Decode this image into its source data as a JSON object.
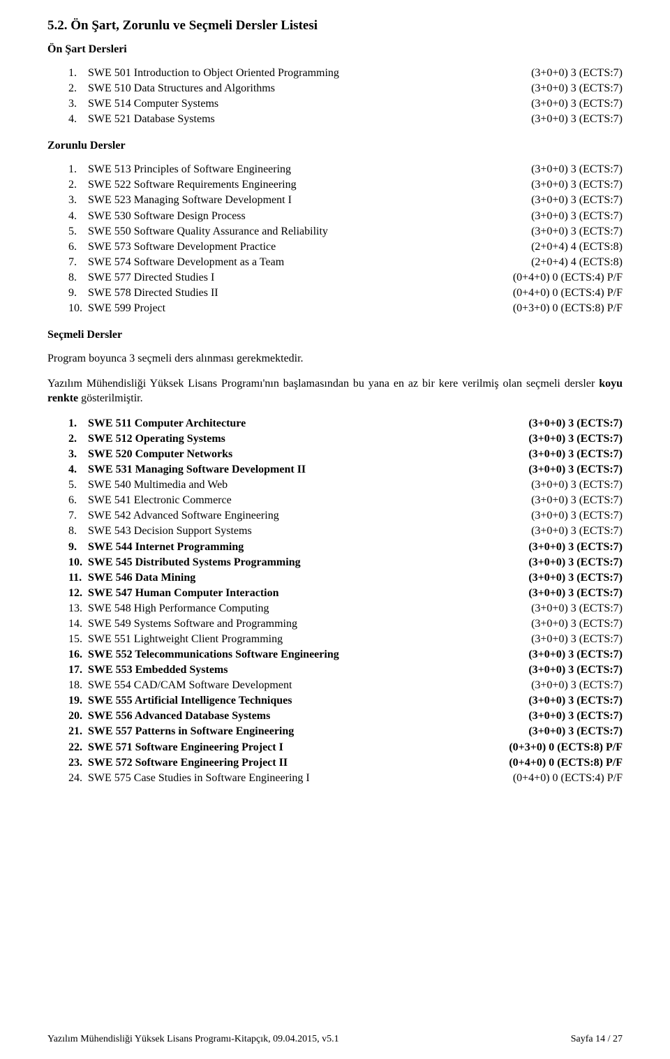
{
  "heading": "5.2. Ön Şart, Zorunlu ve Seçmeli Dersler Listesi",
  "section1": {
    "title": "Ön Şart Dersleri",
    "items": [
      {
        "n": "1.",
        "name": "SWE 501 Introduction to Object Oriented Programming",
        "cr": "(3+0+0) 3 (ECTS:7)",
        "b": false
      },
      {
        "n": "2.",
        "name": "SWE 510 Data Structures and Algorithms",
        "cr": "(3+0+0) 3 (ECTS:7)",
        "b": false
      },
      {
        "n": "3.",
        "name": "SWE 514 Computer Systems",
        "cr": "(3+0+0) 3 (ECTS:7)",
        "b": false
      },
      {
        "n": "4.",
        "name": "SWE 521 Database Systems",
        "cr": "(3+0+0) 3 (ECTS:7)",
        "b": false
      }
    ]
  },
  "section2": {
    "title": "Zorunlu Dersler",
    "items": [
      {
        "n": "1.",
        "name": "SWE 513 Principles of Software Engineering",
        "cr": "(3+0+0) 3 (ECTS:7)",
        "b": false
      },
      {
        "n": "2.",
        "name": "SWE 522 Software Requirements Engineering",
        "cr": "(3+0+0) 3 (ECTS:7)",
        "b": false
      },
      {
        "n": "3.",
        "name": "SWE 523 Managing Software Development I",
        "cr": "(3+0+0) 3 (ECTS:7)",
        "b": false
      },
      {
        "n": "4.",
        "name": "SWE 530 Software Design Process",
        "cr": "(3+0+0) 3 (ECTS:7)",
        "b": false
      },
      {
        "n": "5.",
        "name": "SWE 550 Software Quality Assurance and Reliability",
        "cr": "(3+0+0) 3 (ECTS:7)",
        "b": false
      },
      {
        "n": "6.",
        "name": "SWE 573 Software Development Practice",
        "cr": "(2+0+4) 4 (ECTS:8)",
        "b": false
      },
      {
        "n": "7.",
        "name": "SWE 574 Software Development as a Team",
        "cr": "(2+0+4) 4 (ECTS:8)",
        "b": false
      },
      {
        "n": "8.",
        "name": "SWE 577 Directed Studies I",
        "cr": "(0+4+0) 0 (ECTS:4) P/F",
        "b": false
      },
      {
        "n": "9.",
        "name": "SWE 578 Directed Studies II",
        "cr": "(0+4+0) 0 (ECTS:4) P/F",
        "b": false
      },
      {
        "n": "10.",
        "name": "SWE 599 Project",
        "cr": "(0+3+0) 0 (ECTS:8) P/F",
        "b": false
      }
    ]
  },
  "section3": {
    "title": "Seçmeli Dersler",
    "para1": "Program boyunca 3 seçmeli ders alınması gerekmektedir.",
    "para2_before": "Yazılım Mühendisliği Yüksek Lisans Programı'nın başlamasından bu yana en az bir kere verilmiş olan seçmeli dersler ",
    "para2_bold": "koyu renkte",
    "para2_after": " gösterilmiştir.",
    "items": [
      {
        "n": "1.",
        "name": "SWE 511 Computer Architecture",
        "cr": "(3+0+0) 3 (ECTS:7)",
        "b": true
      },
      {
        "n": "2.",
        "name": "SWE 512 Operating Systems",
        "cr": "(3+0+0) 3 (ECTS:7)",
        "b": true
      },
      {
        "n": "3.",
        "name": "SWE 520 Computer Networks",
        "cr": "(3+0+0) 3 (ECTS:7)",
        "b": true
      },
      {
        "n": "4.",
        "name": "SWE 531 Managing Software Development II",
        "cr": "(3+0+0) 3 (ECTS:7)",
        "b": true
      },
      {
        "n": "5.",
        "name": "SWE 540 Multimedia and Web",
        "cr": "(3+0+0) 3 (ECTS:7)",
        "b": false
      },
      {
        "n": "6.",
        "name": "SWE 541 Electronic Commerce",
        "cr": "(3+0+0) 3 (ECTS:7)",
        "b": false
      },
      {
        "n": "7.",
        "name": "SWE 542 Advanced Software Engineering",
        "cr": "(3+0+0) 3 (ECTS:7)",
        "b": false
      },
      {
        "n": "8.",
        "name": "SWE 543 Decision Support Systems",
        "cr": "(3+0+0) 3 (ECTS:7)",
        "b": false
      },
      {
        "n": "9.",
        "name": "SWE 544 Internet Programming",
        "cr": "(3+0+0) 3 (ECTS:7)",
        "b": true
      },
      {
        "n": "10.",
        "name": "SWE 545 Distributed Systems Programming",
        "cr": "(3+0+0) 3 (ECTS:7)",
        "b": true
      },
      {
        "n": "11.",
        "name": "SWE 546 Data Mining",
        "cr": "(3+0+0) 3 (ECTS:7)",
        "b": true
      },
      {
        "n": "12.",
        "name": "SWE 547 Human Computer Interaction",
        "cr": "(3+0+0) 3 (ECTS:7)",
        "b": true
      },
      {
        "n": "13.",
        "name": "SWE 548 High Performance Computing",
        "cr": "(3+0+0) 3 (ECTS:7)",
        "b": false
      },
      {
        "n": "14.",
        "name": "SWE 549 Systems Software and Programming",
        "cr": "(3+0+0) 3 (ECTS:7)",
        "b": false
      },
      {
        "n": "15.",
        "name": "SWE 551 Lightweight Client Programming",
        "cr": "(3+0+0) 3 (ECTS:7)",
        "b": false
      },
      {
        "n": "16.",
        "name": "SWE 552 Telecommunications Software Engineering",
        "cr": "(3+0+0) 3 (ECTS:7)",
        "b": true
      },
      {
        "n": "17.",
        "name": "SWE 553 Embedded Systems",
        "cr": "(3+0+0) 3 (ECTS:7)",
        "b": true
      },
      {
        "n": "18.",
        "name": "SWE 554 CAD/CAM Software Development",
        "cr": "(3+0+0) 3 (ECTS:7)",
        "b": false
      },
      {
        "n": "19.",
        "name": "SWE 555 Artificial Intelligence Techniques",
        "cr": "(3+0+0) 3 (ECTS:7)",
        "b": true
      },
      {
        "n": "20.",
        "name": "SWE 556 Advanced Database Systems",
        "cr": "(3+0+0) 3 (ECTS:7)",
        "b": true
      },
      {
        "n": "21.",
        "name": "SWE 557 Patterns in Software Engineering",
        "cr": "(3+0+0) 3 (ECTS:7)",
        "b": true
      },
      {
        "n": "22.",
        "name": "SWE 571 Software Engineering Project I",
        "cr": "(0+3+0) 0 (ECTS:8) P/F",
        "b": true
      },
      {
        "n": "23.",
        "name": "SWE 572 Software Engineering Project II",
        "cr": "(0+4+0) 0 (ECTS:8) P/F",
        "b": true
      },
      {
        "n": "24.",
        "name": "SWE 575 Case Studies in Software Engineering I",
        "cr": "(0+4+0) 0 (ECTS:4) P/F",
        "b": false
      }
    ]
  },
  "footer": {
    "left": "Yazılım Mühendisliği Yüksek Lisans Programı-Kitapçık, 09.04.2015, v5.1",
    "right": "Sayfa 14 / 27"
  }
}
